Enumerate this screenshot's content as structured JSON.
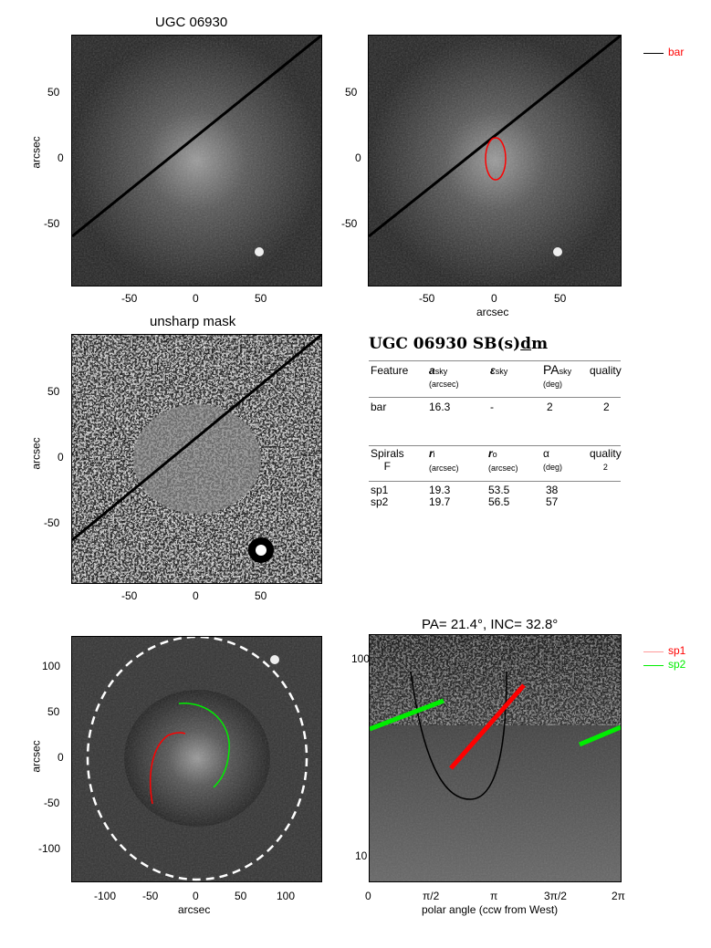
{
  "panel1": {
    "title": "UGC 06930",
    "ylabel": "arcsec",
    "yticks": [
      "50",
      "0",
      "-50"
    ],
    "xticks": [
      "-50",
      "0",
      "50"
    ]
  },
  "panel2": {
    "xlabel": "arcsec",
    "yticks": [
      "50",
      "0",
      "-50"
    ],
    "xticks": [
      "-50",
      "0",
      "50"
    ],
    "legend": {
      "label": "bar",
      "color": "#ff0000"
    }
  },
  "panel3": {
    "title": "unsharp mask",
    "ylabel": "arcsec",
    "yticks": [
      "50",
      "0",
      "-50"
    ],
    "xticks": [
      "-50",
      "0",
      "50"
    ]
  },
  "table": {
    "heading": "UGC 06930  SB(s)",
    "heading_ul": "d",
    "heading_end": "m",
    "bar_header": {
      "feature": "Feature",
      "a": "a",
      "a_sub": "sky",
      "a_unit": "(arcsec)",
      "e": "ε",
      "e_sub": "sky",
      "pa": "PA",
      "pa_sub": "sky",
      "pa_unit": "(deg)",
      "quality": "quality"
    },
    "bar_row": {
      "feature": "bar",
      "a": "16.3",
      "e": "-",
      "pa": "2",
      "quality": "2"
    },
    "spiral_header": {
      "label": "Spirals",
      "class": "F",
      "ri": "r",
      "ri_sub": "i",
      "ri_unit": "(arcsec)",
      "ro": "r",
      "ro_sub": "o",
      "ro_unit": "(arcsec)",
      "alpha": "α",
      "alpha_unit": "(deg)",
      "quality": "quality",
      "quality_val": "2"
    },
    "spirals": [
      {
        "name": "sp1",
        "ri": "19.3",
        "ro": "53.5",
        "alpha": "38"
      },
      {
        "name": "sp2",
        "ri": "19.7",
        "ro": "56.5",
        "alpha": "57"
      }
    ]
  },
  "panel5": {
    "ylabel": "arcsec",
    "xlabel": "arcsec",
    "yticks": [
      "100",
      "50",
      "0",
      "-50",
      "-100"
    ],
    "xticks": [
      "-100",
      "-50",
      "0",
      "50",
      "100"
    ]
  },
  "panel6": {
    "title": "PA=  21.4°, INC=  32.8°",
    "xlabel": "polar angle (ccw from West)",
    "yticks": [
      "100",
      "10"
    ],
    "xticks": [
      "0",
      "π/2",
      "π",
      "3π/2",
      "2π"
    ],
    "legend": [
      {
        "label": "sp1",
        "color": "#ff0000"
      },
      {
        "label": "sp2",
        "color": "#00ee00"
      }
    ]
  }
}
